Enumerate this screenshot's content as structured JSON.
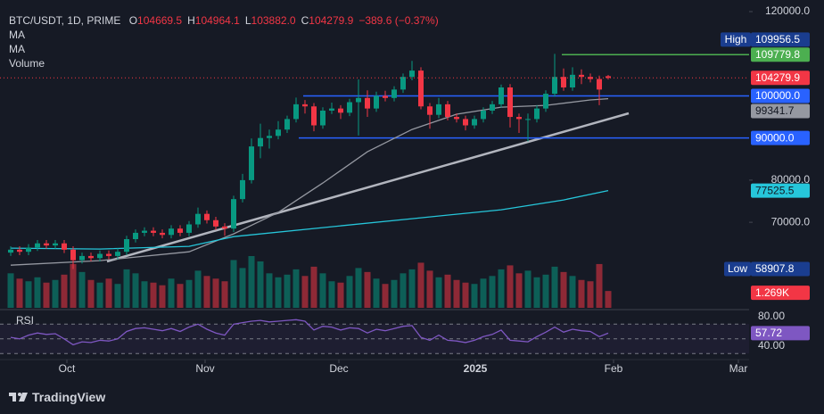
{
  "header": {
    "symbol": "BTC/USDT, 1D, PRIME",
    "ohlc": [
      {
        "label": "O",
        "value": "104669.5"
      },
      {
        "label": "H",
        "value": "104964.1"
      },
      {
        "label": "L",
        "value": "103882.0"
      },
      {
        "label": "C",
        "value": "104279.9"
      }
    ],
    "change": "−389.6 (−0.37%)",
    "indicators": [
      "MA",
      "MA",
      "Volume"
    ]
  },
  "chart_data": {
    "type": "candlestick",
    "open": [
      62800,
      63500,
      63000,
      64000,
      65000,
      64500,
      65000,
      63500,
      61000,
      62000,
      61500,
      62500,
      62000,
      63000,
      66000,
      67500,
      68000,
      67500,
      67000,
      68500,
      67500,
      69500,
      72000,
      70500,
      69000,
      68500,
      75500,
      80000,
      88000,
      90000,
      90500,
      92000,
      94500,
      98000,
      97500,
      93000,
      96500,
      97000,
      96000,
      98500,
      99500,
      97000,
      100000,
      99500,
      101500,
      104500,
      106000,
      97500,
      95500,
      98000,
      95000,
      94500,
      93000,
      94500,
      96500,
      98000,
      102000,
      95000,
      94500,
      94500,
      97000,
      100500,
      104500,
      102000,
      105000,
      104500,
      104000,
      104669.5
    ],
    "high": [
      64300,
      64300,
      64800,
      65800,
      65800,
      65800,
      65800,
      64300,
      62800,
      62800,
      63300,
      63300,
      63800,
      66800,
      68300,
      68800,
      68800,
      68300,
      69300,
      69300,
      70300,
      73500,
      72800,
      71300,
      69800,
      76300,
      81500,
      89900,
      93400,
      92000,
      94000,
      95300,
      99600,
      99000,
      98300,
      97300,
      98400,
      97800,
      99300,
      103900,
      101300,
      101000,
      101200,
      102300,
      105300,
      108300,
      106800,
      98300,
      99500,
      98800,
      95800,
      95300,
      95300,
      97300,
      98800,
      102700,
      102800,
      95800,
      95800,
      97800,
      101300,
      109956.5,
      106500,
      106800,
      106300,
      105300,
      104800,
      104964.1
    ],
    "low": [
      62000,
      62200,
      62200,
      63200,
      63700,
      63700,
      62700,
      58907.8,
      60200,
      60700,
      60700,
      61200,
      61200,
      62200,
      65200,
      66700,
      66700,
      66200,
      66200,
      66700,
      66700,
      68700,
      69700,
      68200,
      66800,
      67700,
      74700,
      79200,
      85200,
      87500,
      89700,
      91200,
      93700,
      95800,
      91600,
      92200,
      95700,
      94500,
      95200,
      90600,
      95000,
      96200,
      98700,
      98700,
      100700,
      103700,
      96800,
      92200,
      94700,
      94200,
      93700,
      91800,
      92200,
      93700,
      95700,
      97200,
      92500,
      91200,
      89200,
      93700,
      96200,
      99800,
      101200,
      101200,
      102800,
      103200,
      97800,
      103882.0
    ],
    "close": [
      63500,
      63000,
      64000,
      65000,
      64500,
      65000,
      63500,
      61000,
      62000,
      61500,
      62500,
      62000,
      63000,
      66000,
      67500,
      68000,
      67500,
      67000,
      68500,
      67500,
      69500,
      72000,
      70500,
      69000,
      68500,
      75500,
      80000,
      88000,
      90000,
      90500,
      92000,
      94500,
      98000,
      97500,
      93000,
      96500,
      97000,
      96000,
      98500,
      99500,
      97000,
      100000,
      99500,
      101500,
      104500,
      106000,
      97500,
      95500,
      98000,
      95000,
      94500,
      93000,
      94500,
      96500,
      98000,
      102000,
      95000,
      94500,
      94500,
      97000,
      100500,
      104500,
      102000,
      105000,
      104500,
      104000,
      101500,
      104279.9
    ],
    "up_color": "#089981",
    "down_color": "#f23645",
    "xlim": [
      -1.2,
      82.8
    ],
    "xticks": [
      {
        "value": 6.3,
        "label": "Oct"
      },
      {
        "value": 21.8,
        "label": "Nov"
      },
      {
        "value": 36.8,
        "label": "Dec"
      },
      {
        "value": 52.1,
        "label": "2025"
      },
      {
        "value": 67.6,
        "label": "Feb"
      },
      {
        "value": 81.6,
        "label": "Mar"
      }
    ],
    "ylim": [
      49700,
      122750
    ],
    "yticks": [
      {
        "value": 120000,
        "label": "120000.0"
      },
      {
        "value": 80000,
        "label": "80000.0"
      },
      {
        "value": 70000,
        "label": "70000.0"
      }
    ],
    "high_label": "High",
    "low_label": "Low",
    "ma": [
      {
        "color": "#9598a1",
        "x": [
          0,
          10,
          20,
          25,
          30,
          35,
          40,
          45,
          50,
          55,
          60,
          65,
          67
        ],
        "values": [
          59830,
          60900,
          63000,
          67250,
          72330,
          79320,
          86740,
          92030,
          95640,
          97330,
          97750,
          99030,
          99341.7
        ]
      },
      {
        "color": "#26c6da",
        "x": [
          0,
          10,
          20,
          25,
          35,
          45,
          55,
          62,
          67
        ],
        "values": [
          63860,
          63650,
          64280,
          66600,
          68740,
          70860,
          72970,
          75300,
          77525.5
        ]
      }
    ],
    "levels": [
      {
        "value": 109779.8,
        "label": "109779.8",
        "color": "#4caf50"
      },
      {
        "value": 100000,
        "label": "100000.0",
        "color": "#2962ff"
      },
      {
        "value": 90000,
        "label": "90000.0",
        "color": "#2962ff"
      }
    ],
    "volume": {
      "values": [
        2600,
        2200,
        2000,
        2300,
        1900,
        2100,
        2500,
        3300,
        2700,
        2100,
        1900,
        2200,
        1800,
        2900,
        2600,
        2000,
        1900,
        1700,
        2200,
        1800,
        2100,
        2800,
        2400,
        2200,
        2000,
        3600,
        3000,
        3900,
        3500,
        2600,
        2300,
        2500,
        2900,
        2400,
        3100,
        2600,
        2000,
        1900,
        2400,
        3000,
        2700,
        2200,
        1800,
        2100,
        2600,
        2900,
        3400,
        2800,
        2300,
        2500,
        2100,
        1900,
        1800,
        2200,
        2400,
        2900,
        3200,
        2600,
        2800,
        2300,
        2500,
        3100,
        2700,
        2400,
        2100,
        2000,
        3300,
        1269
      ],
      "value_labels": [
        null,
        null,
        null,
        null,
        null,
        null,
        null,
        null,
        null,
        null,
        null,
        null,
        null,
        null,
        null,
        null,
        null,
        null,
        null,
        null,
        null,
        null,
        null,
        null,
        null,
        null,
        null,
        null,
        null,
        null,
        null,
        null,
        null,
        null,
        null,
        null,
        null,
        null,
        null,
        null,
        null,
        null,
        null,
        null,
        null,
        null,
        null,
        null,
        null,
        null,
        null,
        null,
        null,
        null,
        null,
        null,
        null,
        null,
        null,
        null,
        null,
        null,
        null,
        null,
        null,
        null,
        null,
        "1.269K"
      ]
    },
    "rsi": {
      "title": "RSI",
      "color": "#7e57c2",
      "values": [
        52,
        50,
        55,
        58,
        56,
        57,
        50,
        42,
        46,
        45,
        48,
        47,
        50,
        60,
        64,
        65,
        63,
        61,
        64,
        60,
        66,
        70,
        63,
        58,
        55,
        70,
        72,
        74,
        75,
        73,
        74,
        75,
        76,
        74,
        62,
        67,
        66,
        62,
        65,
        64,
        58,
        63,
        61,
        64,
        67,
        68,
        52,
        48,
        55,
        48,
        47,
        45,
        48,
        53,
        56,
        62,
        48,
        47,
        46,
        53,
        59,
        66,
        59,
        63,
        61,
        60,
        53,
        57.72
      ],
      "ylim": [
        19.4,
        88.5
      ],
      "yticks": [
        {
          "value": 80,
          "label": "80.00"
        },
        {
          "value": 40,
          "label": "40.00"
        }
      ],
      "levels": [
        70,
        50,
        30
      ]
    }
  },
  "footer": {
    "brand": "TradingView"
  }
}
